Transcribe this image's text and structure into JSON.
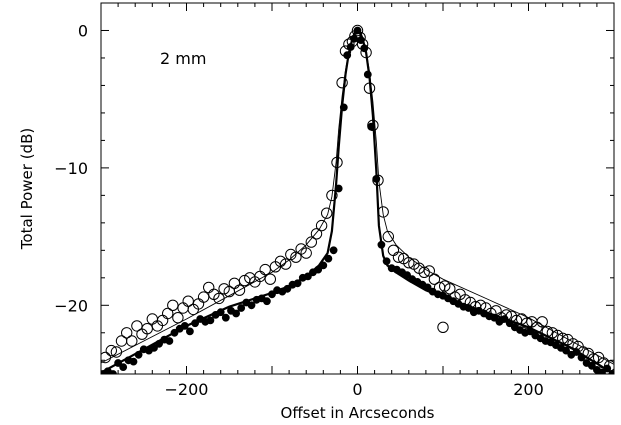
{
  "chart_data": {
    "type": "scatter",
    "title": "",
    "annotation": "2 mm",
    "xlabel": "Offset in Arcseconds",
    "ylabel": "Total Power (dB)",
    "xlim": [
      -300,
      300
    ],
    "ylim": [
      -25,
      2
    ],
    "xticks": [
      -200,
      0,
      200
    ],
    "xtick_labels": [
      "−200",
      "0",
      "200"
    ],
    "yticks": [
      0,
      -10,
      -20
    ],
    "ytick_labels": [
      "0",
      "−10",
      "−20"
    ],
    "x_minor_step": 20,
    "y_minor_step": 2,
    "grid": false,
    "series": [
      {
        "marker": "open-circle",
        "x": [
          -295,
          -288,
          -282,
          -276,
          -270,
          -264,
          -258,
          -252,
          -246,
          -240,
          -234,
          -228,
          -222,
          -216,
          -210,
          -204,
          -198,
          -192,
          -186,
          -180,
          -174,
          -168,
          -162,
          -156,
          -150,
          -144,
          -138,
          -132,
          -126,
          -120,
          -114,
          -108,
          -102,
          -96,
          -90,
          -84,
          -78,
          -72,
          -66,
          -60,
          -54,
          -48,
          -42,
          -36,
          -30,
          -24,
          -18,
          -14,
          -10,
          -6,
          -3,
          0,
          3,
          6,
          10,
          14,
          18,
          24,
          30,
          36,
          42,
          48,
          54,
          60,
          66,
          72,
          78,
          84,
          90,
          96,
          100,
          102,
          108,
          114,
          120,
          126,
          132,
          138,
          144,
          150,
          156,
          162,
          168,
          174,
          180,
          186,
          192,
          198,
          204,
          210,
          216,
          222,
          228,
          234,
          240,
          246,
          252,
          258,
          264,
          270,
          276,
          282,
          288,
          295
        ],
        "y": [
          -23.8,
          -23.3,
          -23.4,
          -22.6,
          -22.0,
          -22.6,
          -21.5,
          -22.1,
          -21.7,
          -21.0,
          -21.5,
          -21.1,
          -20.6,
          -20.0,
          -20.9,
          -20.2,
          -19.7,
          -20.3,
          -19.9,
          -19.4,
          -18.7,
          -19.2,
          -19.5,
          -18.8,
          -19.0,
          -18.4,
          -18.9,
          -18.2,
          -18.0,
          -18.3,
          -17.9,
          -17.4,
          -18.1,
          -17.2,
          -16.8,
          -17.0,
          -16.3,
          -16.5,
          -15.9,
          -16.2,
          -15.4,
          -14.8,
          -14.2,
          -13.3,
          -12.0,
          -9.6,
          -3.8,
          -1.5,
          -1.0,
          -0.8,
          -0.4,
          0,
          -0.5,
          -1.0,
          -1.6,
          -4.2,
          -6.9,
          -10.9,
          -13.2,
          -15.0,
          -16.0,
          -16.5,
          -16.6,
          -16.9,
          -17.0,
          -17.3,
          -17.6,
          -17.5,
          -18.1,
          -18.7,
          -21.6,
          -18.6,
          -18.8,
          -19.4,
          -19.2,
          -19.6,
          -19.8,
          -20.1,
          -20.0,
          -20.2,
          -20.6,
          -20.4,
          -20.9,
          -20.7,
          -20.8,
          -21.1,
          -21.0,
          -21.3,
          -21.2,
          -21.6,
          -21.2,
          -21.9,
          -22.0,
          -22.2,
          -22.4,
          -22.5,
          -22.8,
          -23.0,
          -23.4,
          -23.5,
          -23.9,
          -23.8,
          -24.2,
          -24.4
        ]
      },
      {
        "marker": "filled-circle",
        "x": [
          -298,
          -292,
          -286,
          -280,
          -274,
          -268,
          -262,
          -256,
          -250,
          -244,
          -238,
          -232,
          -226,
          -220,
          -214,
          -208,
          -202,
          -196,
          -190,
          -184,
          -178,
          -172,
          -166,
          -160,
          -154,
          -148,
          -142,
          -136,
          -130,
          -124,
          -118,
          -112,
          -106,
          -100,
          -94,
          -88,
          -82,
          -76,
          -70,
          -64,
          -58,
          -52,
          -46,
          -40,
          -34,
          -28,
          -22,
          -16,
          -12,
          -8,
          -4,
          0,
          4,
          8,
          12,
          16,
          22,
          28,
          34,
          40,
          46,
          52,
          58,
          64,
          70,
          76,
          82,
          88,
          94,
          100,
          106,
          112,
          118,
          124,
          130,
          136,
          142,
          148,
          154,
          160,
          166,
          172,
          178,
          184,
          190,
          196,
          202,
          208,
          214,
          220,
          226,
          232,
          238,
          244,
          250,
          256,
          262,
          268,
          274,
          280,
          286,
          292,
          298
        ],
        "y": [
          -25.0,
          -24.8,
          -25.0,
          -24.2,
          -24.5,
          -24.0,
          -24.1,
          -23.6,
          -23.2,
          -23.3,
          -23.1,
          -22.8,
          -22.5,
          -22.6,
          -22.0,
          -21.7,
          -21.5,
          -21.9,
          -21.3,
          -21.0,
          -21.2,
          -21.1,
          -20.7,
          -20.5,
          -20.9,
          -20.4,
          -20.6,
          -20.2,
          -19.8,
          -20.0,
          -19.6,
          -19.5,
          -19.7,
          -19.2,
          -18.9,
          -19.0,
          -18.8,
          -18.5,
          -18.4,
          -18.0,
          -17.9,
          -17.6,
          -17.4,
          -17.1,
          -16.6,
          -16.0,
          -11.5,
          -5.6,
          -1.8,
          -1.2,
          -0.6,
          0,
          -0.7,
          -1.3,
          -3.2,
          -7.0,
          -10.8,
          -15.6,
          -16.8,
          -17.3,
          -17.4,
          -17.6,
          -17.8,
          -18.1,
          -18.3,
          -18.5,
          -18.7,
          -19.0,
          -19.2,
          -19.3,
          -19.5,
          -19.7,
          -19.9,
          -20.1,
          -20.2,
          -20.5,
          -20.4,
          -20.6,
          -20.8,
          -20.9,
          -21.2,
          -21.0,
          -21.3,
          -21.6,
          -21.8,
          -22.0,
          -21.9,
          -22.2,
          -22.4,
          -22.6,
          -22.7,
          -22.9,
          -23.1,
          -23.3,
          -23.6,
          -23.4,
          -23.8,
          -24.2,
          -24.4,
          -24.7,
          -24.9,
          -24.6,
          -25.0
        ]
      }
    ],
    "curves": [
      {
        "style": "thick",
        "x": [
          -300,
          -250,
          -200,
          -150,
          -100,
          -80,
          -60,
          -45,
          -35,
          -30,
          -25,
          -22,
          -18,
          -14,
          -10,
          -6,
          -3,
          0,
          3,
          6,
          10,
          14,
          18,
          22,
          25,
          30,
          35,
          45,
          60,
          80,
          100,
          150,
          200,
          250,
          300
        ],
        "y": [
          -24.9,
          -23.2,
          -21.5,
          -20.1,
          -19.1,
          -18.6,
          -17.9,
          -17.1,
          -16.2,
          -14.6,
          -11.2,
          -8.5,
          -5.5,
          -3.2,
          -1.6,
          -0.6,
          -0.15,
          0,
          -0.15,
          -0.6,
          -1.6,
          -3.4,
          -6.2,
          -10.2,
          -14.2,
          -16.4,
          -17.1,
          -17.6,
          -18.2,
          -18.9,
          -19.4,
          -20.5,
          -21.6,
          -23.1,
          -25.0
        ]
      },
      {
        "style": "thin",
        "x": [
          -300,
          -250,
          -200,
          -150,
          -100,
          -80,
          -60,
          -45,
          -35,
          -30,
          -25,
          -22,
          -18,
          -14,
          -10,
          -6,
          -3,
          0,
          3,
          6,
          10,
          14,
          18,
          22,
          25,
          30,
          35,
          45,
          60,
          80,
          100,
          150,
          200,
          250,
          300
        ],
        "y": [
          -24.2,
          -22.6,
          -21.0,
          -19.3,
          -17.6,
          -16.7,
          -15.6,
          -14.5,
          -13.4,
          -12.1,
          -9.6,
          -7.2,
          -4.8,
          -2.9,
          -1.5,
          -0.6,
          -0.15,
          0,
          -0.15,
          -0.6,
          -1.5,
          -3.0,
          -5.2,
          -8.1,
          -11.0,
          -13.4,
          -14.6,
          -15.6,
          -16.5,
          -17.4,
          -18.1,
          -19.5,
          -20.9,
          -22.6,
          -24.3
        ]
      }
    ]
  }
}
